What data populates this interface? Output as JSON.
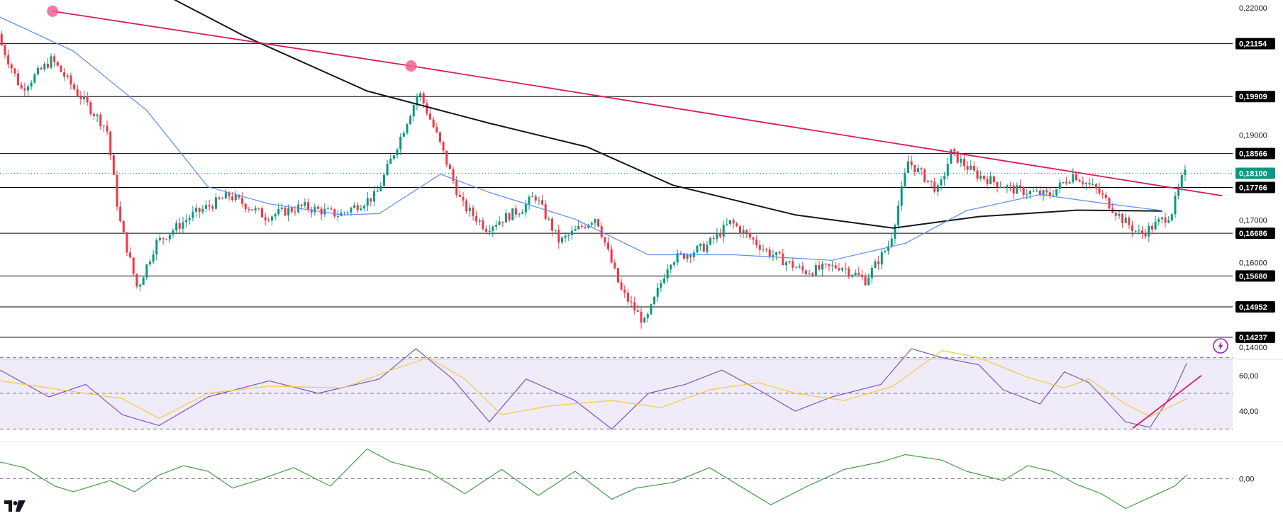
{
  "chart_data": [
    {
      "type": "candlestick",
      "pane": "price",
      "title": "",
      "y_axis_ticks": [
        "0,22000",
        "0,19000",
        "0,17000",
        "0,16000",
        "0,14000"
      ],
      "y_axis_ticks_values": [
        0.22,
        0.19,
        0.17,
        0.16,
        0.14
      ],
      "ylim": [
        0.1395,
        0.2205
      ],
      "grid": false,
      "horizontal_levels": [
        {
          "label": "0,21154",
          "value": 0.21154
        },
        {
          "label": "0,19909",
          "value": 0.19909
        },
        {
          "label": "0,18566",
          "value": 0.18566
        },
        {
          "label": "0,17766",
          "value": 0.17766
        },
        {
          "label": "0,16686",
          "value": 0.16686
        },
        {
          "label": "0,15680",
          "value": 0.1568
        },
        {
          "label": "0,14952",
          "value": 0.14952
        },
        {
          "label": "0,14237",
          "value": 0.14237
        }
      ],
      "last_price": {
        "label": "0,18100",
        "value": 0.181,
        "color": "#089981"
      },
      "trendline": {
        "color": "#d81b60",
        "points": [
          [
            0.043,
            0.2192
          ],
          [
            0.336,
            0.2063
          ],
          [
            0.999,
            0.1757
          ]
        ]
      },
      "moving_averages": [
        {
          "color": "#131722",
          "points": [
            [
              0.14,
              0.2223
            ],
            [
              0.2,
              0.2133
            ],
            [
              0.3,
              0.2004
            ],
            [
              0.4,
              0.1928
            ],
            [
              0.48,
              0.1872
            ],
            [
              0.55,
              0.1782
            ],
            [
              0.65,
              0.1712
            ],
            [
              0.73,
              0.1681
            ],
            [
              0.8,
              0.1708
            ],
            [
              0.88,
              0.1723
            ],
            [
              0.95,
              0.1721
            ]
          ]
        },
        {
          "color": "#5b8def",
          "points": [
            [
              0.0,
              0.2178
            ],
            [
              0.06,
              0.2098
            ],
            [
              0.12,
              0.1958
            ],
            [
              0.17,
              0.1778
            ],
            [
              0.22,
              0.1738
            ],
            [
              0.28,
              0.1712
            ],
            [
              0.31,
              0.1715
            ],
            [
              0.36,
              0.1808
            ],
            [
              0.4,
              0.1765
            ],
            [
              0.47,
              0.1702
            ],
            [
              0.53,
              0.1618
            ],
            [
              0.6,
              0.1618
            ],
            [
              0.68,
              0.1605
            ],
            [
              0.74,
              0.1645
            ],
            [
              0.79,
              0.1722
            ],
            [
              0.85,
              0.176
            ],
            [
              0.9,
              0.174
            ],
            [
              0.95,
              0.1722
            ]
          ]
        }
      ],
      "price_path": [
        [
          0.0,
          0.2138
        ],
        [
          0.02,
          0.2008
        ],
        [
          0.045,
          0.2078
        ],
        [
          0.065,
          0.2003
        ],
        [
          0.09,
          0.1915
        ],
        [
          0.1,
          0.1705
        ],
        [
          0.115,
          0.1538
        ],
        [
          0.13,
          0.1645
        ],
        [
          0.16,
          0.1712
        ],
        [
          0.19,
          0.1758
        ],
        [
          0.22,
          0.1708
        ],
        [
          0.25,
          0.1732
        ],
        [
          0.28,
          0.1712
        ],
        [
          0.31,
          0.1758
        ],
        [
          0.33,
          0.1895
        ],
        [
          0.345,
          0.2003
        ],
        [
          0.36,
          0.1898
        ],
        [
          0.38,
          0.1738
        ],
        [
          0.4,
          0.1682
        ],
        [
          0.43,
          0.1728
        ],
        [
          0.44,
          0.1758
        ],
        [
          0.46,
          0.1648
        ],
        [
          0.49,
          0.1708
        ],
        [
          0.51,
          0.1535
        ],
        [
          0.53,
          0.1455
        ],
        [
          0.55,
          0.1605
        ],
        [
          0.58,
          0.1638
        ],
        [
          0.6,
          0.1695
        ],
        [
          0.63,
          0.1625
        ],
        [
          0.66,
          0.1578
        ],
        [
          0.69,
          0.1592
        ],
        [
          0.71,
          0.1558
        ],
        [
          0.73,
          0.1645
        ],
        [
          0.745,
          0.1838
        ],
        [
          0.77,
          0.1768
        ],
        [
          0.78,
          0.1858
        ],
        [
          0.8,
          0.1808
        ],
        [
          0.83,
          0.1772
        ],
        [
          0.86,
          0.1758
        ],
        [
          0.88,
          0.1808
        ],
        [
          0.9,
          0.1768
        ],
        [
          0.92,
          0.1702
        ],
        [
          0.935,
          0.1665
        ],
        [
          0.96,
          0.1715
        ],
        [
          0.97,
          0.1808
        ]
      ]
    },
    {
      "type": "line",
      "pane": "rsi",
      "title": "",
      "y_axis_ticks": [
        "60,00",
        "40,00"
      ],
      "y_axis_ticks_values": [
        60,
        40
      ],
      "bands": [
        70,
        50,
        30
      ],
      "band_fill": "#7e57c2",
      "ylim": [
        25,
        75
      ],
      "series": [
        {
          "color": "#7e57c2",
          "points": [
            [
              0.0,
              63
            ],
            [
              0.04,
              48
            ],
            [
              0.07,
              55
            ],
            [
              0.1,
              38
            ],
            [
              0.13,
              32
            ],
            [
              0.17,
              48
            ],
            [
              0.22,
              57
            ],
            [
              0.26,
              50
            ],
            [
              0.31,
              58
            ],
            [
              0.34,
              78
            ],
            [
              0.37,
              58
            ],
            [
              0.4,
              34
            ],
            [
              0.43,
              58
            ],
            [
              0.47,
              46
            ],
            [
              0.5,
              30
            ],
            [
              0.53,
              50
            ],
            [
              0.56,
              55
            ],
            [
              0.59,
              63
            ],
            [
              0.62,
              52
            ],
            [
              0.65,
              40
            ],
            [
              0.68,
              48
            ],
            [
              0.72,
              55
            ],
            [
              0.745,
              78
            ],
            [
              0.77,
              70
            ],
            [
              0.8,
              66
            ],
            [
              0.82,
              52
            ],
            [
              0.85,
              44
            ],
            [
              0.87,
              62
            ],
            [
              0.89,
              56
            ],
            [
              0.92,
              34
            ],
            [
              0.94,
              31
            ],
            [
              0.96,
              52
            ],
            [
              0.97,
              67
            ]
          ]
        },
        {
          "color": "#f7c948",
          "points": [
            [
              0.0,
              57
            ],
            [
              0.05,
              52
            ],
            [
              0.1,
              47
            ],
            [
              0.13,
              36
            ],
            [
              0.17,
              50
            ],
            [
              0.22,
              54
            ],
            [
              0.28,
              53
            ],
            [
              0.32,
              63
            ],
            [
              0.35,
              70
            ],
            [
              0.38,
              58
            ],
            [
              0.41,
              38
            ],
            [
              0.45,
              43
            ],
            [
              0.5,
              46
            ],
            [
              0.54,
              42
            ],
            [
              0.58,
              52
            ],
            [
              0.62,
              56
            ],
            [
              0.65,
              50
            ],
            [
              0.69,
              46
            ],
            [
              0.73,
              54
            ],
            [
              0.77,
              74
            ],
            [
              0.8,
              70
            ],
            [
              0.84,
              59
            ],
            [
              0.87,
              53
            ],
            [
              0.89,
              58
            ],
            [
              0.92,
              44
            ],
            [
              0.94,
              37
            ],
            [
              0.97,
              47
            ]
          ]
        }
      ],
      "trendline": {
        "color": "#d81b60",
        "points": [
          [
            0.926,
            30.5
          ],
          [
            0.982,
            60
          ]
        ]
      }
    },
    {
      "type": "line",
      "pane": "oscillator",
      "title": "",
      "y_axis_ticks": [
        "0,00"
      ],
      "y_axis_ticks_values": [
        0
      ],
      "zero_line": 0,
      "ylim": [
        -1,
        1
      ],
      "series": [
        {
          "color": "#43a047",
          "points": [
            [
              0.0,
              0.45
            ],
            [
              0.02,
              0.3
            ],
            [
              0.045,
              -0.2
            ],
            [
              0.06,
              -0.35
            ],
            [
              0.09,
              -0.05
            ],
            [
              0.11,
              -0.35
            ],
            [
              0.13,
              0.1
            ],
            [
              0.15,
              0.35
            ],
            [
              0.17,
              0.2
            ],
            [
              0.19,
              -0.25
            ],
            [
              0.21,
              -0.05
            ],
            [
              0.24,
              0.3
            ],
            [
              0.27,
              -0.2
            ],
            [
              0.3,
              0.8
            ],
            [
              0.32,
              0.45
            ],
            [
              0.35,
              0.2
            ],
            [
              0.38,
              -0.4
            ],
            [
              0.41,
              0.25
            ],
            [
              0.44,
              -0.45
            ],
            [
              0.47,
              0.2
            ],
            [
              0.5,
              -0.55
            ],
            [
              0.52,
              -0.25
            ],
            [
              0.55,
              -0.1
            ],
            [
              0.58,
              0.3
            ],
            [
              0.61,
              -0.3
            ],
            [
              0.63,
              -0.7
            ],
            [
              0.66,
              -0.2
            ],
            [
              0.69,
              0.25
            ],
            [
              0.72,
              0.45
            ],
            [
              0.74,
              0.65
            ],
            [
              0.77,
              0.5
            ],
            [
              0.79,
              0.2
            ],
            [
              0.82,
              -0.05
            ],
            [
              0.84,
              0.35
            ],
            [
              0.86,
              0.2
            ],
            [
              0.88,
              -0.15
            ],
            [
              0.9,
              -0.4
            ],
            [
              0.92,
              -0.8
            ],
            [
              0.94,
              -0.5
            ],
            [
              0.96,
              -0.2
            ],
            [
              0.97,
              0.1
            ]
          ]
        }
      ]
    }
  ],
  "colors": {
    "up": "#089981",
    "down": "#f23645",
    "level": "#000000",
    "badge": "#000000",
    "axis_text": "#131722",
    "pivot_marker": "#f06292"
  },
  "icons": {
    "flash": "lightning-icon",
    "logo": "tradingview-logo-icon"
  }
}
